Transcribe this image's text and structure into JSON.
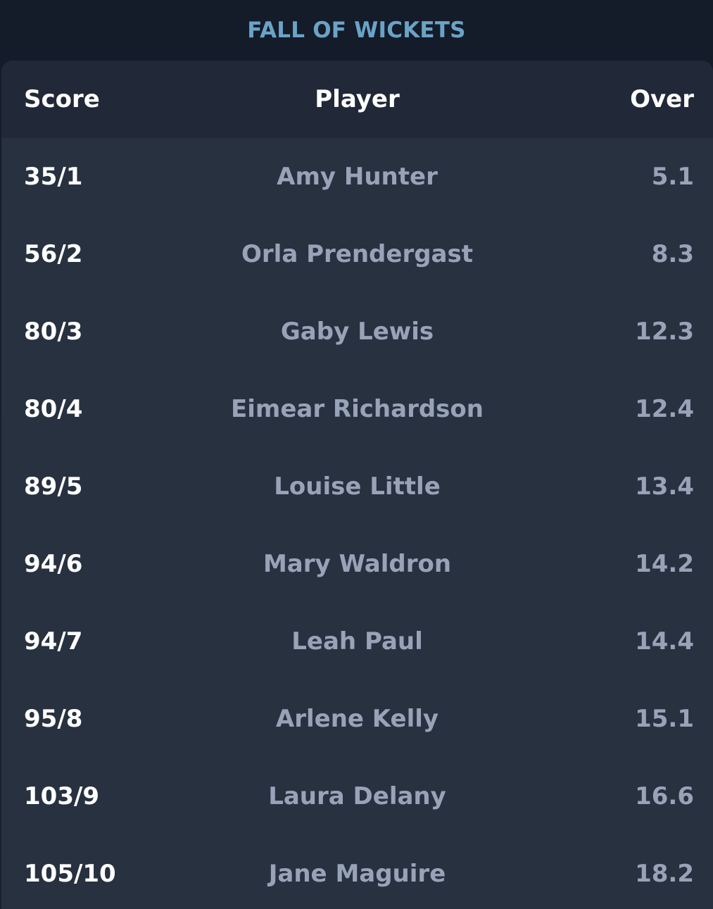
{
  "title": "FALL OF WICKETS",
  "columns": {
    "score": "Score",
    "player": "Player",
    "over": "Over"
  },
  "rows": [
    {
      "score": "35/1",
      "player": "Amy Hunter",
      "over": "5.1"
    },
    {
      "score": "56/2",
      "player": "Orla Prendergast",
      "over": "8.3"
    },
    {
      "score": "80/3",
      "player": "Gaby Lewis",
      "over": "12.3"
    },
    {
      "score": "80/4",
      "player": "Eimear Richardson",
      "over": "12.4"
    },
    {
      "score": "89/5",
      "player": "Louise Little",
      "over": "13.4"
    },
    {
      "score": "94/6",
      "player": "Mary Waldron",
      "over": "14.2"
    },
    {
      "score": "94/7",
      "player": "Leah Paul",
      "over": "14.4"
    },
    {
      "score": "95/8",
      "player": "Arlene Kelly",
      "over": "15.1"
    },
    {
      "score": "103/9",
      "player": "Laura Delany",
      "over": "16.6"
    },
    {
      "score": "105/10",
      "player": "Jane Maguire",
      "over": "18.2"
    }
  ],
  "colors": {
    "title": "#6aa3c6",
    "background": "#141b29",
    "card": "#283140",
    "header": "#212938",
    "primary_text": "#ffffff",
    "secondary_text": "#98a3b8"
  }
}
